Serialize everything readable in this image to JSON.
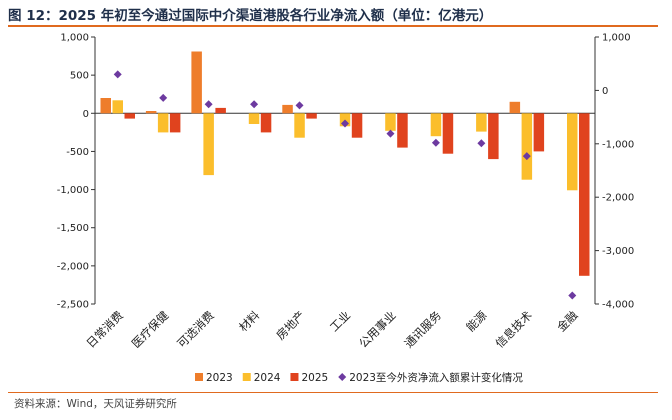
{
  "title": "图 12：2025 年初至今通过国际中介渠道港股各行业净流入额（单位：亿港元）",
  "source": "资料来源：Wind，天风证券研究所",
  "chart_data": {
    "type": "bar",
    "categories": [
      "日常消费",
      "医疗保健",
      "可选消费",
      "材料",
      "房地产",
      "工业",
      "公用事业",
      "通讯服务",
      "能源",
      "信息技术",
      "金融"
    ],
    "series": [
      {
        "name": "2023",
        "axis": "left",
        "color": "#ee7d2b",
        "values": [
          200,
          30,
          810,
          0,
          110,
          0,
          0,
          0,
          0,
          150,
          0
        ]
      },
      {
        "name": "2024",
        "axis": "left",
        "color": "#fbbe2c",
        "values": [
          170,
          -250,
          -810,
          -140,
          -320,
          -170,
          -230,
          -300,
          -240,
          -870,
          -1010
        ]
      },
      {
        "name": "2025",
        "axis": "left",
        "color": "#e0431e",
        "values": [
          -70,
          -250,
          70,
          -250,
          -70,
          -320,
          -450,
          -530,
          -600,
          -500,
          -2130
        ]
      },
      {
        "name": "2023至今外资净流入额累计变化情况",
        "axis": "right",
        "color": "#6d3aa0",
        "marker": "diamond",
        "values": [
          300,
          -140,
          -260,
          -260,
          -280,
          -620,
          -810,
          -980,
          -990,
          -1230,
          -3840
        ]
      }
    ],
    "left_axis": {
      "ylim": [
        -2500,
        1000
      ],
      "ticks": [
        "1,000",
        "500",
        "0",
        "-500",
        "-1,000",
        "-1,500",
        "-2,000",
        "-2,500"
      ]
    },
    "right_axis": {
      "ylim": [
        -4000,
        1000
      ],
      "ticks": [
        "1,000",
        "0",
        "-1,000",
        "-2,000",
        "-3,000",
        "-4,000"
      ]
    },
    "legend_position": "bottom",
    "grid": false
  }
}
